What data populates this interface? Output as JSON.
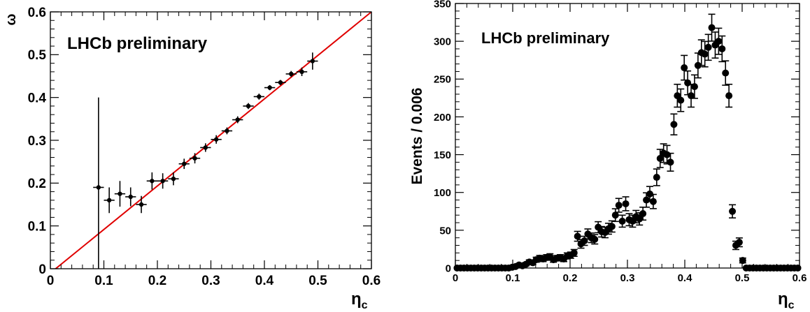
{
  "chart_data": [
    {
      "type": "scatter",
      "annotation": "LHCb preliminary",
      "xlabel": "η",
      "xlabel_sub": "c",
      "ylabel": "ω",
      "xlim": [
        0,
        0.6
      ],
      "ylim": [
        0,
        0.6
      ],
      "xticks": [
        "0",
        "0.1",
        "0.2",
        "0.3",
        "0.4",
        "0.5",
        "0.6"
      ],
      "yticks": [
        "0",
        "0.1",
        "0.2",
        "0.3",
        "0.4",
        "0.5",
        "0.6"
      ],
      "grid": false,
      "colors": {
        "points": "#000000",
        "fit_line": "#e00000"
      },
      "points": [
        {
          "x": 0.09,
          "y": 0.19,
          "xerr": 0.01,
          "yerr_up": 0.21,
          "yerr_dn": 0.19
        },
        {
          "x": 0.11,
          "y": 0.16,
          "xerr": 0.01,
          "yerr_up": 0.03,
          "yerr_dn": 0.03
        },
        {
          "x": 0.13,
          "y": 0.175,
          "xerr": 0.01,
          "yerr_up": 0.03,
          "yerr_dn": 0.03
        },
        {
          "x": 0.15,
          "y": 0.168,
          "xerr": 0.01,
          "yerr_up": 0.022,
          "yerr_dn": 0.022
        },
        {
          "x": 0.17,
          "y": 0.15,
          "xerr": 0.01,
          "yerr_up": 0.02,
          "yerr_dn": 0.02
        },
        {
          "x": 0.19,
          "y": 0.205,
          "xerr": 0.01,
          "yerr_up": 0.02,
          "yerr_dn": 0.02
        },
        {
          "x": 0.21,
          "y": 0.205,
          "xerr": 0.01,
          "yerr_up": 0.018,
          "yerr_dn": 0.018
        },
        {
          "x": 0.23,
          "y": 0.21,
          "xerr": 0.01,
          "yerr_up": 0.015,
          "yerr_dn": 0.015
        },
        {
          "x": 0.25,
          "y": 0.245,
          "xerr": 0.01,
          "yerr_up": 0.012,
          "yerr_dn": 0.012
        },
        {
          "x": 0.27,
          "y": 0.258,
          "xerr": 0.01,
          "yerr_up": 0.012,
          "yerr_dn": 0.012
        },
        {
          "x": 0.29,
          "y": 0.283,
          "xerr": 0.01,
          "yerr_up": 0.01,
          "yerr_dn": 0.01
        },
        {
          "x": 0.31,
          "y": 0.302,
          "xerr": 0.01,
          "yerr_up": 0.01,
          "yerr_dn": 0.01
        },
        {
          "x": 0.33,
          "y": 0.322,
          "xerr": 0.01,
          "yerr_up": 0.008,
          "yerr_dn": 0.008
        },
        {
          "x": 0.35,
          "y": 0.348,
          "xerr": 0.01,
          "yerr_up": 0.008,
          "yerr_dn": 0.008
        },
        {
          "x": 0.37,
          "y": 0.38,
          "xerr": 0.01,
          "yerr_up": 0.007,
          "yerr_dn": 0.007
        },
        {
          "x": 0.39,
          "y": 0.402,
          "xerr": 0.01,
          "yerr_up": 0.007,
          "yerr_dn": 0.007
        },
        {
          "x": 0.41,
          "y": 0.423,
          "xerr": 0.01,
          "yerr_up": 0.006,
          "yerr_dn": 0.006
        },
        {
          "x": 0.43,
          "y": 0.435,
          "xerr": 0.01,
          "yerr_up": 0.006,
          "yerr_dn": 0.006
        },
        {
          "x": 0.45,
          "y": 0.455,
          "xerr": 0.01,
          "yerr_up": 0.007,
          "yerr_dn": 0.007
        },
        {
          "x": 0.47,
          "y": 0.46,
          "xerr": 0.01,
          "yerr_up": 0.01,
          "yerr_dn": 0.01
        },
        {
          "x": 0.49,
          "y": 0.485,
          "xerr": 0.01,
          "yerr_up": 0.02,
          "yerr_dn": 0.02
        }
      ],
      "fit_line": {
        "x": [
          0.0,
          0.6
        ],
        "y": [
          -0.01,
          0.6
        ]
      }
    },
    {
      "type": "scatter",
      "annotation": "LHCb preliminary",
      "xlabel": "η",
      "xlabel_sub": "c",
      "ylabel": "Events / 0.006",
      "xlim": [
        0,
        0.6
      ],
      "ylim": [
        0,
        350
      ],
      "xticks": [
        "0",
        "0.1",
        "0.2",
        "0.3",
        "0.4",
        "0.5",
        "0.6"
      ],
      "yticks": [
        "0",
        "50",
        "100",
        "150",
        "200",
        "250",
        "300",
        "350"
      ],
      "grid": false,
      "colors": {
        "points": "#000000"
      },
      "x": [
        0.003,
        0.009,
        0.015,
        0.021,
        0.027,
        0.033,
        0.039,
        0.045,
        0.051,
        0.057,
        0.063,
        0.069,
        0.075,
        0.081,
        0.087,
        0.093,
        0.099,
        0.105,
        0.111,
        0.117,
        0.123,
        0.129,
        0.135,
        0.141,
        0.147,
        0.153,
        0.159,
        0.165,
        0.171,
        0.177,
        0.183,
        0.189,
        0.195,
        0.201,
        0.207,
        0.213,
        0.219,
        0.225,
        0.231,
        0.237,
        0.243,
        0.249,
        0.255,
        0.261,
        0.267,
        0.273,
        0.279,
        0.285,
        0.291,
        0.297,
        0.303,
        0.309,
        0.315,
        0.321,
        0.327,
        0.333,
        0.339,
        0.345,
        0.351,
        0.357,
        0.363,
        0.369,
        0.375,
        0.381,
        0.387,
        0.393,
        0.399,
        0.405,
        0.411,
        0.417,
        0.423,
        0.429,
        0.435,
        0.441,
        0.447,
        0.453,
        0.459,
        0.465,
        0.471,
        0.477,
        0.483,
        0.489,
        0.495,
        0.501,
        0.507,
        0.513,
        0.519,
        0.525,
        0.531,
        0.537,
        0.543,
        0.549,
        0.555,
        0.561,
        0.567,
        0.573,
        0.579,
        0.585,
        0.591,
        0.597
      ],
      "values": [
        0,
        0,
        0,
        0,
        0,
        0,
        0,
        0,
        0,
        0,
        0,
        0,
        0,
        0,
        0,
        0,
        1,
        2,
        4,
        3,
        5,
        8,
        7,
        11,
        13,
        12,
        14,
        15,
        11,
        13,
        14,
        12,
        16,
        17,
        20,
        42,
        32,
        36,
        45,
        40,
        38,
        54,
        48,
        47,
        52,
        55,
        70,
        83,
        62,
        85,
        64,
        62,
        68,
        65,
        72,
        90,
        98,
        88,
        120,
        145,
        152,
        150,
        140,
        190,
        228,
        222,
        265,
        245,
        228,
        240,
        268,
        285,
        283,
        292,
        318,
        295,
        300,
        290,
        258,
        228,
        75,
        30,
        34,
        10,
        0,
        0,
        0,
        0,
        0,
        0,
        0,
        0,
        0,
        0,
        0,
        0,
        0,
        0,
        0,
        0
      ],
      "yerr": [
        0,
        0,
        0,
        0,
        0,
        0,
        0,
        0,
        0,
        0,
        0,
        0,
        0,
        0,
        0,
        0,
        1,
        1.4,
        2,
        1.7,
        2.2,
        2.8,
        2.6,
        3.3,
        3.6,
        3.5,
        3.7,
        3.9,
        3.3,
        3.6,
        3.7,
        3.5,
        4,
        4.1,
        4.5,
        6.5,
        5.7,
        6,
        6.7,
        6.3,
        6.2,
        7.3,
        6.9,
        6.9,
        7.2,
        7.4,
        8.4,
        9.1,
        7.9,
        9.2,
        8,
        7.9,
        8.2,
        8.1,
        8.5,
        9.5,
        9.9,
        9.4,
        11,
        12,
        12.3,
        12.2,
        11.8,
        13.8,
        15.1,
        14.9,
        16.3,
        15.7,
        15.1,
        15.5,
        16.4,
        16.9,
        16.8,
        17.1,
        17.8,
        17.2,
        17.3,
        17,
        16.1,
        15.1,
        8.7,
        5.5,
        5.8,
        3.2,
        0,
        0,
        0,
        0,
        0,
        0,
        0,
        0,
        0,
        0,
        0,
        0,
        0,
        0,
        0,
        0
      ]
    }
  ]
}
